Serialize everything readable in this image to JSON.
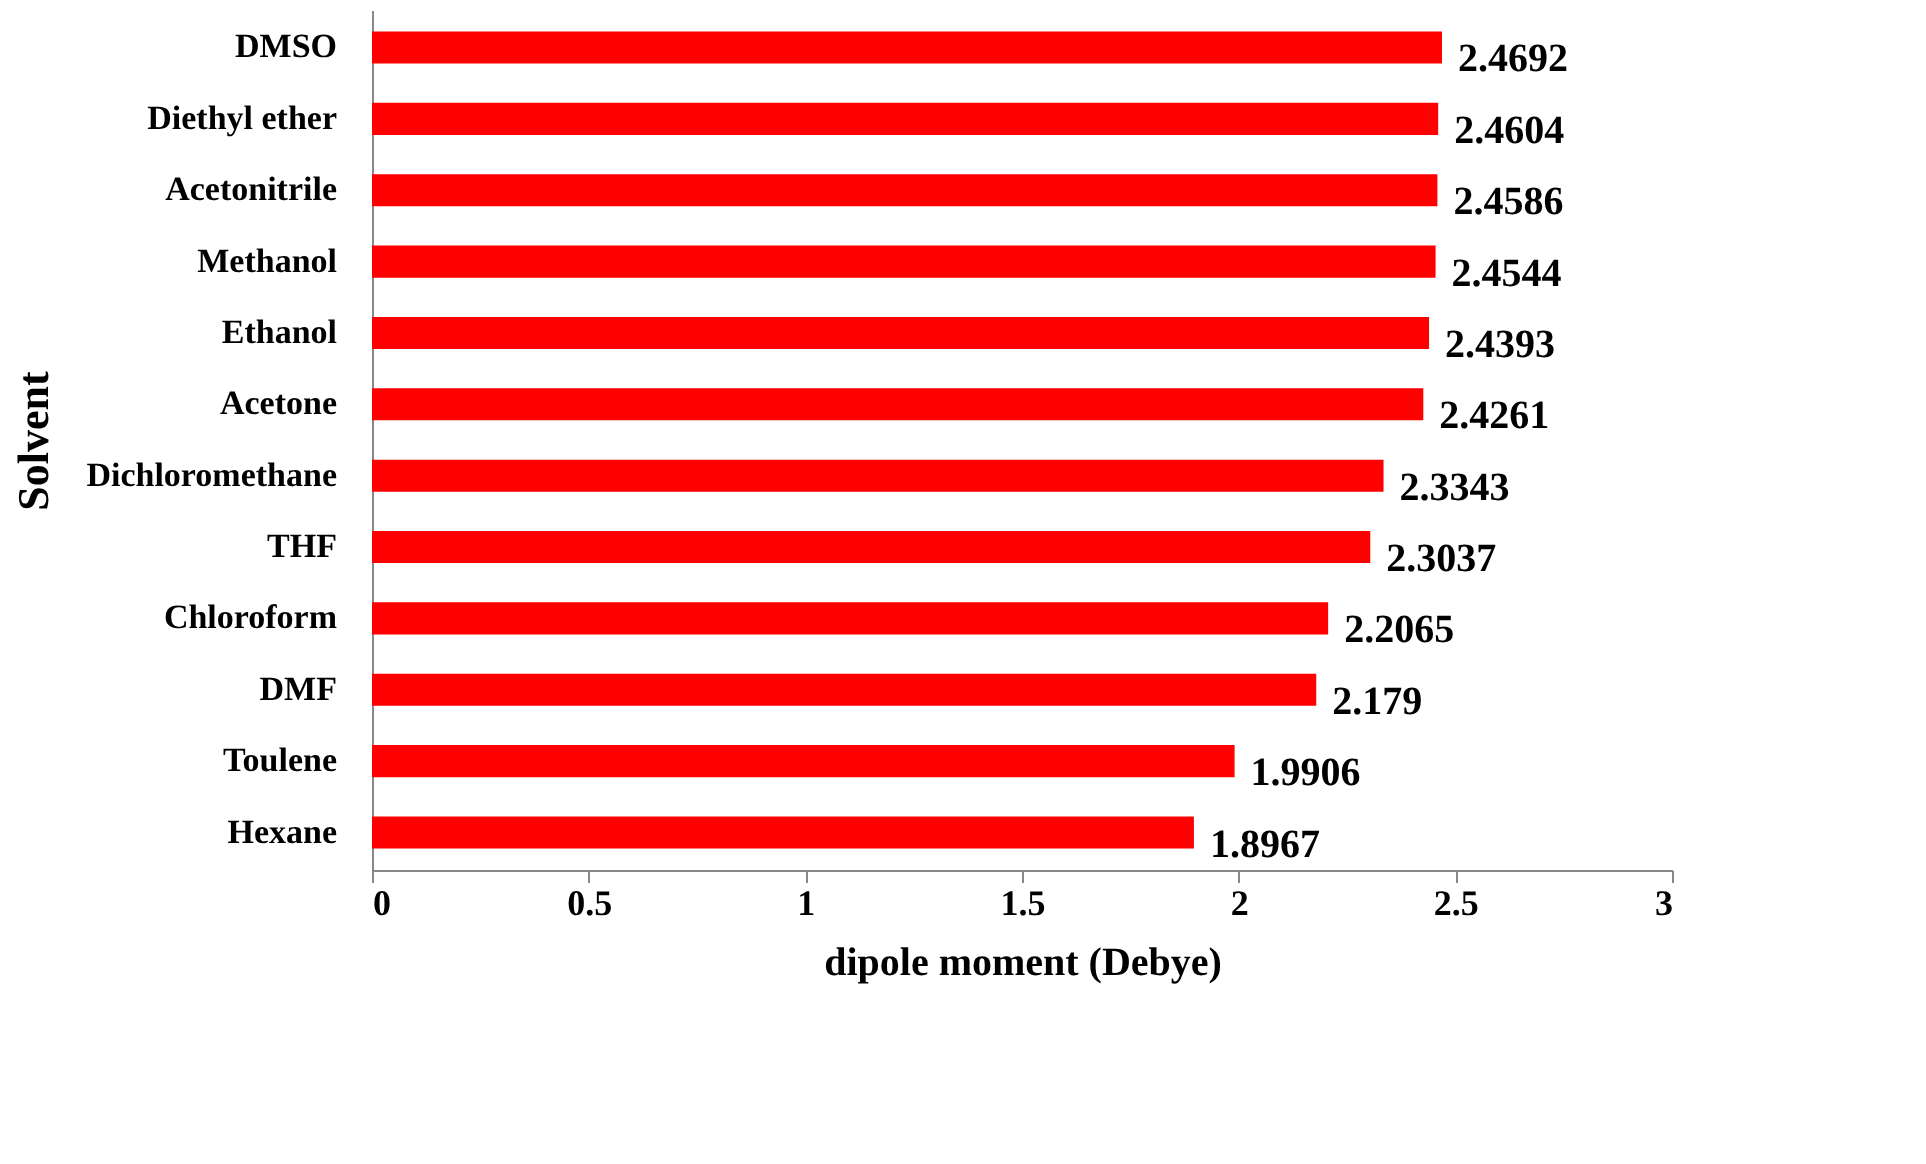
{
  "chart_data": {
    "type": "bar",
    "orientation": "horizontal",
    "xlabel": "dipole moment (Debye)",
    "ylabel": "Solvent",
    "categories": [
      "DMSO",
      "Diethyl ether",
      "Acetonitrile",
      "Methanol",
      "Ethanol",
      "Acetone",
      "Dichloromethane",
      "THF",
      "Chloroform",
      "DMF",
      "Toulene",
      "Hexane"
    ],
    "values": [
      2.4692,
      2.4604,
      2.4586,
      2.4544,
      2.4393,
      2.4261,
      2.3343,
      2.3037,
      2.2065,
      2.179,
      1.9906,
      1.8967
    ],
    "color": "#ff0000",
    "xlim": [
      0,
      3
    ],
    "xticks": [
      0,
      0.5,
      1,
      1.5,
      2,
      2.5,
      3
    ],
    "grid": false,
    "data_labels": true
  }
}
